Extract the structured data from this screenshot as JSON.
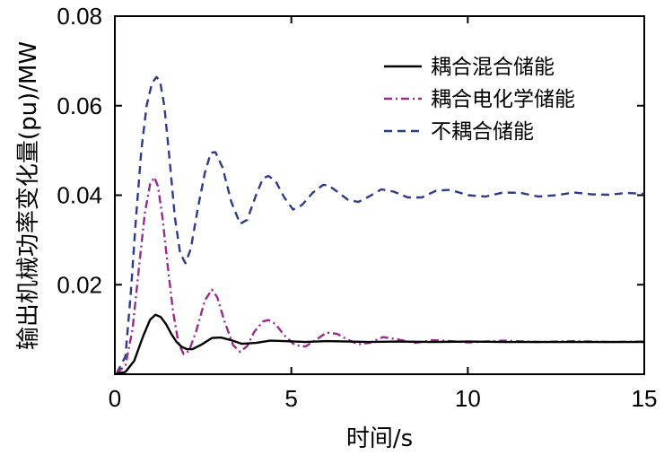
{
  "chart_data": {
    "type": "line",
    "xlabel": "时间/s",
    "ylabel": "输出机械功率变化量(pu)/MW",
    "xlim": [
      0,
      15
    ],
    "ylim": [
      0,
      0.08
    ],
    "xticks": [
      "0",
      "5",
      "10",
      "15"
    ],
    "yticks": [
      "0.02",
      "0.04",
      "0.06",
      "0.08"
    ],
    "grid": false,
    "legend_position": "top-right",
    "series": [
      {
        "name": "耦合混合储能",
        "color": "#000000",
        "dash": "solid",
        "x": [
          0.05,
          0.3,
          0.55,
          0.8,
          1.0,
          1.15,
          1.3,
          1.45,
          1.6,
          1.75,
          1.9,
          2.05,
          2.2,
          2.45,
          2.75,
          3.0,
          3.3,
          3.6,
          4.0,
          4.4,
          4.8,
          5.4,
          6.0,
          6.6,
          7.2,
          8.0,
          9.0,
          10.0,
          11.0,
          12.0,
          13.0,
          14.0,
          15.0
        ],
        "y": [
          0.0002,
          0.0005,
          0.003,
          0.0085,
          0.0122,
          0.0133,
          0.0128,
          0.0112,
          0.009,
          0.0072,
          0.0061,
          0.0056,
          0.0056,
          0.0066,
          0.0081,
          0.0082,
          0.0076,
          0.0068,
          0.007,
          0.0075,
          0.0074,
          0.0072,
          0.0074,
          0.0073,
          0.0072,
          0.0073,
          0.0072,
          0.0073,
          0.0072,
          0.0072,
          0.0072,
          0.0072,
          0.0072
        ]
      },
      {
        "name": "耦合电化学储能",
        "color": "#9a2a8e",
        "dash": "dashdot",
        "x": [
          0.05,
          0.3,
          0.5,
          0.7,
          0.85,
          1.0,
          1.12,
          1.22,
          1.35,
          1.5,
          1.65,
          1.8,
          1.95,
          2.1,
          2.3,
          2.55,
          2.75,
          2.9,
          3.1,
          3.35,
          3.55,
          3.75,
          3.95,
          4.2,
          4.35,
          4.55,
          4.8,
          5.1,
          5.4,
          5.7,
          6.0,
          6.3,
          6.6,
          6.9,
          7.2,
          7.6,
          8.0,
          8.5,
          9.0,
          9.5,
          10.0,
          11.0,
          12.0,
          13.0,
          14.0,
          15.0
        ],
        "y": [
          0.0002,
          0.002,
          0.01,
          0.025,
          0.036,
          0.0425,
          0.044,
          0.042,
          0.035,
          0.024,
          0.014,
          0.007,
          0.0045,
          0.0052,
          0.0095,
          0.0165,
          0.0189,
          0.0172,
          0.012,
          0.0065,
          0.005,
          0.0063,
          0.0095,
          0.0118,
          0.0121,
          0.0112,
          0.0087,
          0.0065,
          0.0062,
          0.0077,
          0.0093,
          0.009,
          0.0077,
          0.0067,
          0.007,
          0.0083,
          0.0078,
          0.007,
          0.0076,
          0.0074,
          0.0071,
          0.0075,
          0.0072,
          0.0074,
          0.0072,
          0.0073
        ]
      },
      {
        "name": "不耦合储能",
        "color": "#2e3a8c",
        "dash": "dashed",
        "x": [
          0.05,
          0.3,
          0.45,
          0.6,
          0.75,
          0.9,
          1.05,
          1.18,
          1.28,
          1.4,
          1.55,
          1.7,
          1.85,
          2.0,
          2.15,
          2.35,
          2.55,
          2.72,
          2.85,
          3.05,
          3.3,
          3.55,
          3.75,
          4.0,
          4.2,
          4.35,
          4.55,
          4.8,
          5.05,
          5.3,
          5.6,
          5.9,
          6.05,
          6.3,
          6.6,
          6.9,
          7.2,
          7.55,
          7.9,
          8.3,
          8.7,
          9.1,
          9.5,
          10.0,
          10.5,
          11.0,
          11.5,
          12.0,
          12.5,
          13.0,
          13.5,
          14.0,
          14.5,
          15.0
        ],
        "y": [
          0.0002,
          0.004,
          0.018,
          0.035,
          0.05,
          0.06,
          0.065,
          0.0664,
          0.0655,
          0.06,
          0.048,
          0.035,
          0.027,
          0.0248,
          0.028,
          0.037,
          0.045,
          0.0495,
          0.0496,
          0.0462,
          0.0385,
          0.0336,
          0.0345,
          0.04,
          0.0438,
          0.0443,
          0.0432,
          0.0395,
          0.0368,
          0.0378,
          0.0405,
          0.0423,
          0.0422,
          0.0408,
          0.039,
          0.0385,
          0.0397,
          0.0413,
          0.0408,
          0.0395,
          0.0395,
          0.041,
          0.0412,
          0.04,
          0.0397,
          0.0406,
          0.0405,
          0.0397,
          0.04,
          0.0406,
          0.0402,
          0.0401,
          0.0405,
          0.0403
        ]
      }
    ]
  }
}
